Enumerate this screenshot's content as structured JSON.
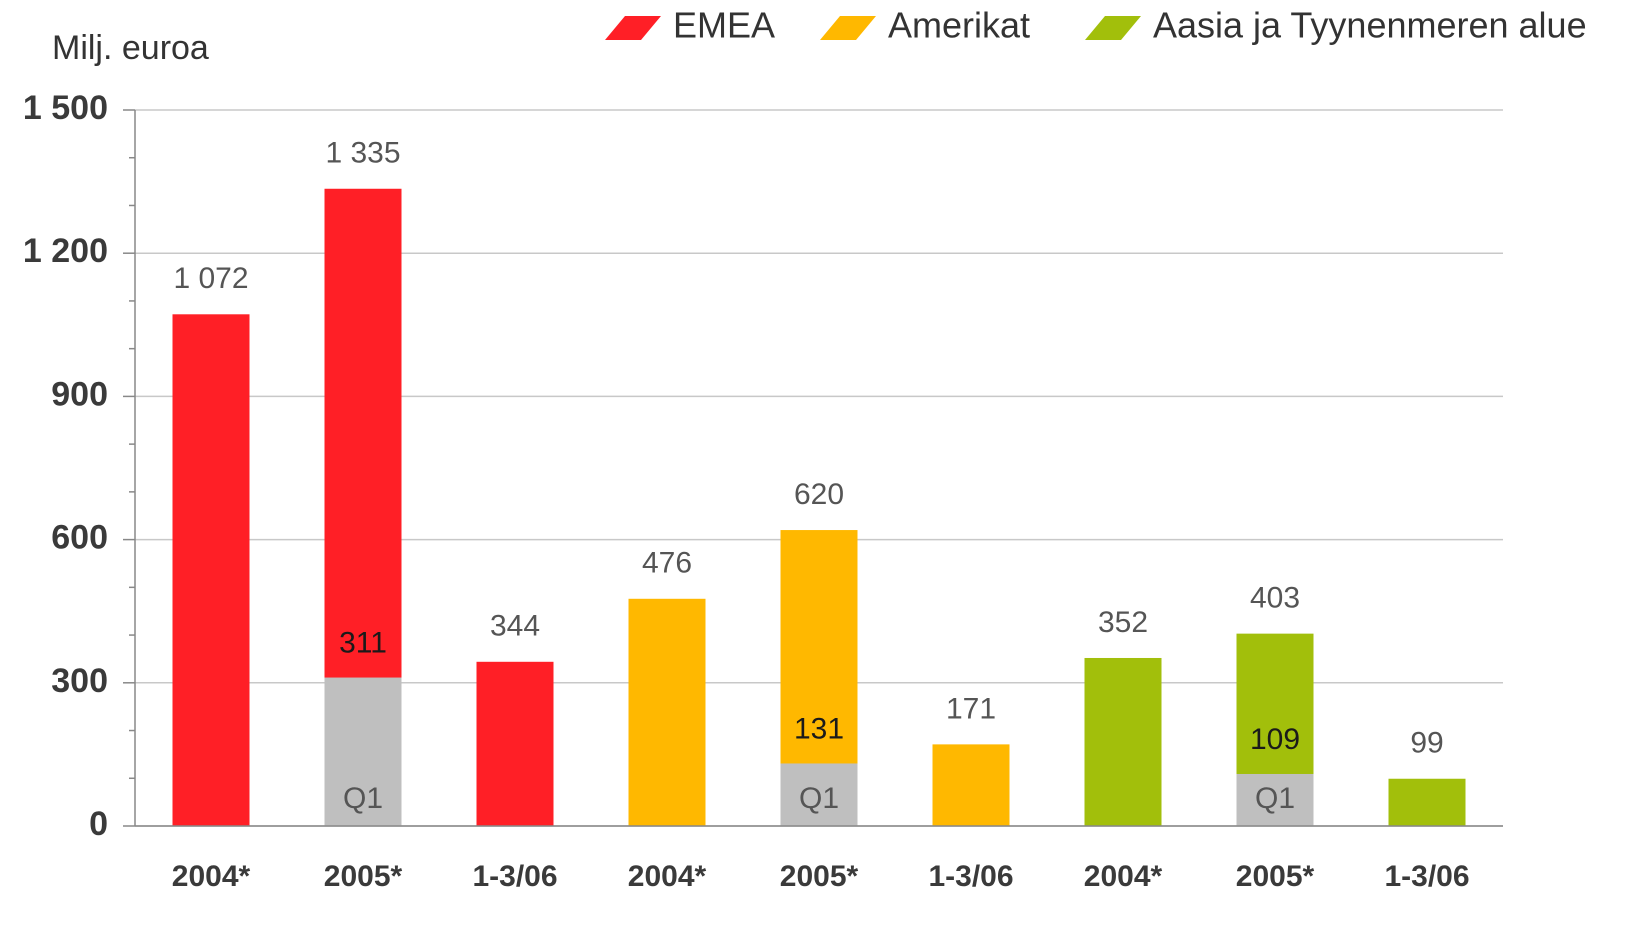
{
  "chart_data": {
    "type": "bar",
    "ylabel": "Milj. euroa",
    "categories": [
      "2004*",
      "2005*",
      "1-3/06",
      "2004*",
      "2005*",
      "1-3/06",
      "2004*",
      "2005*",
      "1-3/06"
    ],
    "series": [
      {
        "name": "EMEA",
        "color": "#ff1f26",
        "values": [
          1072,
          1335,
          344,
          null,
          null,
          null,
          null,
          null,
          null
        ],
        "value_labels": [
          "1 072",
          "1 335",
          "344",
          null,
          null,
          null,
          null,
          null,
          null
        ]
      },
      {
        "name": "Amerikat",
        "color": "#ffb800",
        "values": [
          null,
          null,
          null,
          476,
          620,
          171,
          null,
          null,
          null
        ]
      },
      {
        "name": "Aasia ja Tyynenmeren alue",
        "color": "#a2bf0b",
        "values": [
          null,
          null,
          null,
          null,
          null,
          null,
          352,
          403,
          99
        ]
      }
    ],
    "overlay": {
      "name": "Q1",
      "color": "#bfbfbf",
      "values": [
        null,
        311,
        null,
        null,
        131,
        null,
        null,
        109,
        null
      ]
    },
    "ylim": [
      0,
      1500
    ],
    "yticks": [
      0,
      300,
      600,
      900,
      {
        "value": 1200,
        "label": "1 200"
      },
      {
        "value": 1500,
        "label": "1 500"
      }
    ],
    "minor_yticks": [
      100,
      200,
      400,
      500,
      700,
      800,
      1000,
      1100,
      1300,
      1400
    ],
    "grid": true
  }
}
